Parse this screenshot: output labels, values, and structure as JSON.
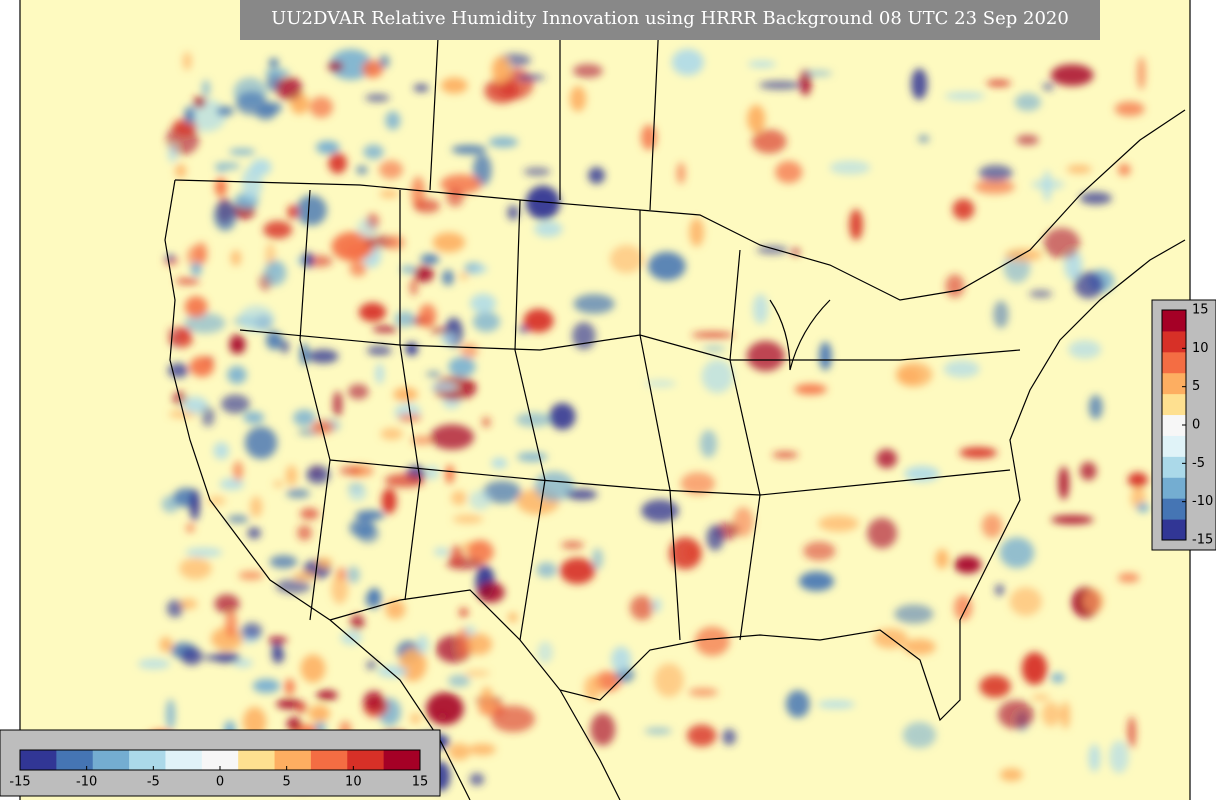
{
  "title": "UU2DVAR Relative Humidity Innovation using HRRR Background 08 UTC 23 Sep 2020",
  "colorbar": {
    "lim": [
      -15,
      15
    ],
    "ticks": [
      -15,
      -10,
      -5,
      0,
      5,
      10,
      15
    ],
    "colors": [
      "#313695",
      "#4575b4",
      "#74add1",
      "#abd9e9",
      "#e0f3f8",
      "#f7f7f7",
      "#fee090",
      "#fdae61",
      "#f46d43",
      "#d73027",
      "#a50026"
    ]
  },
  "vertical_colorbar": {
    "lim": [
      -15,
      15
    ],
    "ticks": [
      -15,
      -10,
      -5,
      0,
      5,
      10,
      15
    ]
  }
}
